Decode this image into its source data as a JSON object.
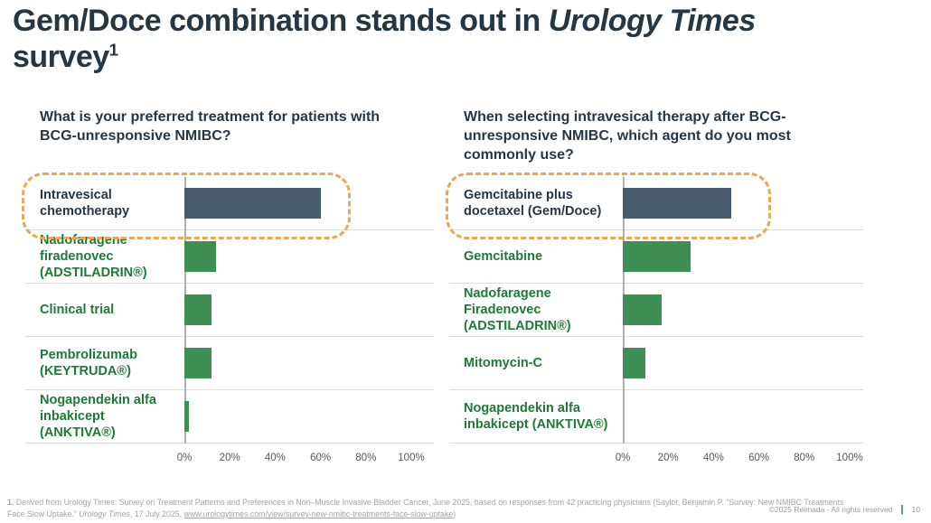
{
  "slide": {
    "title": {
      "pre": "Gem/Doce combination stands out in ",
      "italic": "Urology Times",
      "post": " survey",
      "superscript": "1"
    }
  },
  "chart_data": [
    {
      "type": "bar",
      "orientation": "horizontal",
      "title": "What is your preferred treatment for patients with BCG-unresponsive NMIBC?",
      "categories": [
        "Intravesical chemotherapy",
        "Nadofaragene firadenovec (ADSTILADRIN®)",
        "Clinical trial",
        "Pembrolizumab (KEYTRUDA®)",
        "Nogapendekin alfa inbakicept (ANKTIVA®)"
      ],
      "values": [
        60,
        14,
        12,
        12,
        2
      ],
      "unit": "%",
      "xlim": [
        0,
        100
      ],
      "x_tick_labels": [
        "0%",
        "20%",
        "40%",
        "60%",
        "80%",
        "100%"
      ],
      "highlight_index": 0,
      "highlight_style": "dashed-orange-outline",
      "grid": "row-separators",
      "legend": "none"
    },
    {
      "type": "bar",
      "orientation": "horizontal",
      "title": "When selecting intravesical therapy after BCG-unresponsive NMIBC, which agent do you most commonly use?",
      "categories": [
        "Gemcitabine plus docetaxel (Gem/Doce)",
        "Gemcitabine",
        "Nadofaragene Firadenovec (ADSTILADRIN®)",
        "Mitomycin-C",
        "Nogapendekin alfa inbakicept (ANKTIVA®)"
      ],
      "values": [
        48,
        30,
        17,
        10,
        0
      ],
      "unit": "%",
      "xlim": [
        0,
        100
      ],
      "x_tick_labels": [
        "0%",
        "20%",
        "40%",
        "60%",
        "80%",
        "100%"
      ],
      "highlight_index": 0,
      "highlight_style": "dashed-orange-outline",
      "grid": "row-separators",
      "legend": "none"
    }
  ],
  "footer": {
    "note": {
      "num": "1.",
      "part1": " Derived from Urology Times: Survey on Treatment Patterns and Preferences in Non–Muscle Invasive Bladder Cancer, June 2025, based on responses from 42 practicing physicians (Saylor, Benjamin P. “Survey: New NMIBC Treatments Face Slow Uptake.” ",
      "italic": "Urology Times",
      "part2": ", 17 July 2025, ",
      "link": "www.urologytimes.com/view/survey-new-nmibc-treatments-face-slow-uptake",
      "part3": ")"
    },
    "copyright": "©2025 Relmada - All rights reserved",
    "separator": "|",
    "page_number": "10"
  },
  "colors": {
    "heading_navy": "#253645",
    "label_green": "#1e7a34",
    "bar_green": "#3f8e56",
    "bar_slate": "#485b6c",
    "highlight_orange": "#e9a851",
    "axis_text_gray": "#595959",
    "footer_gray": "#a3a3a3"
  }
}
